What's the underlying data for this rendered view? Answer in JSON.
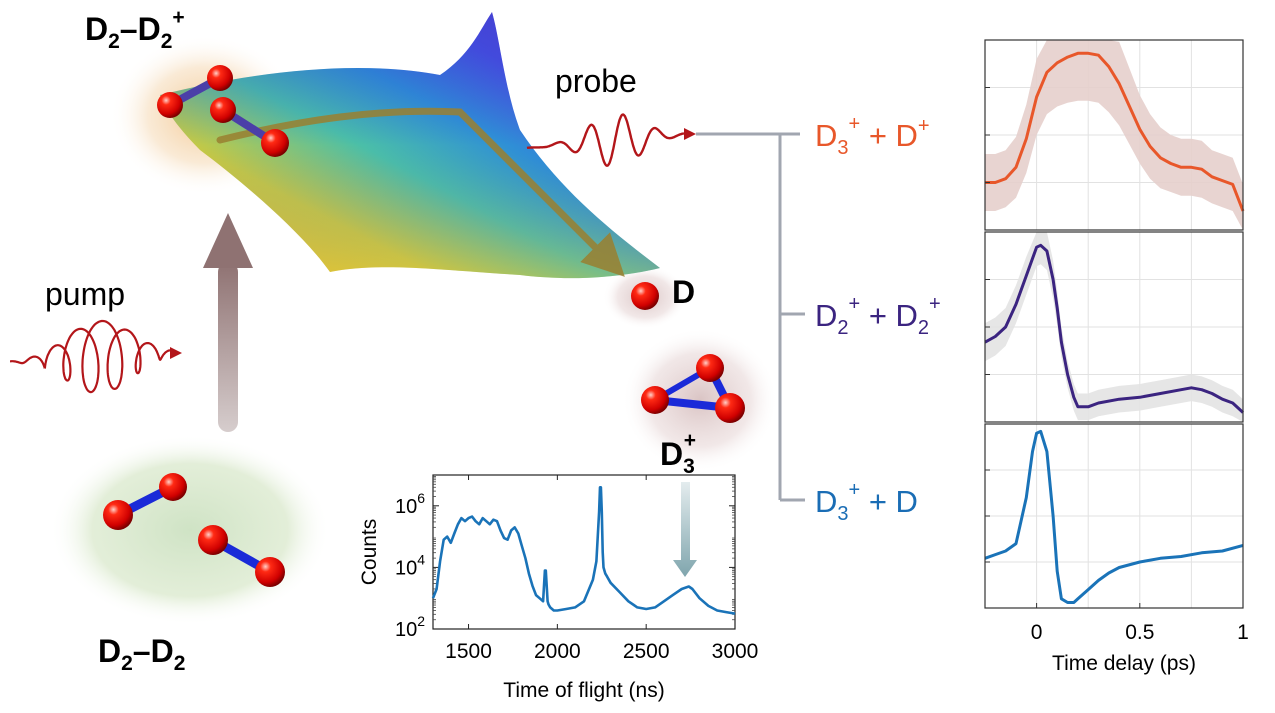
{
  "labels": {
    "dimer_cation": {
      "main": "D",
      "sub1": "2",
      "dash": "–D",
      "sub2": "2",
      "sup": "+"
    },
    "dimer_neutral": {
      "main": "D",
      "sub1": "2",
      "dash": "–D",
      "sub2": "2"
    },
    "probe": "probe",
    "pump": "pump",
    "d_atom": "D",
    "d3_ion": {
      "main": "D",
      "sub": "3",
      "sup": "+"
    }
  },
  "channels": [
    {
      "a": "D",
      "a_sub": "3",
      "a_sup": "+",
      "plus": " + ",
      "b": "D",
      "b_sub": "",
      "b_sup": "+",
      "color": "#e8572a"
    },
    {
      "a": "D",
      "a_sub": "2",
      "a_sup": "+",
      "plus": " + ",
      "b": "D",
      "b_sub": "2",
      "b_sup": "+",
      "color": "#3b2480"
    },
    {
      "a": "D",
      "a_sub": "3",
      "a_sup": "+",
      "plus": " + ",
      "b": "D",
      "b_sub": "",
      "b_sup": "",
      "color": "#1a6db5"
    }
  ],
  "tof_chart": {
    "type": "line",
    "xlabel": "Time of flight (ns)",
    "ylabel": "Counts",
    "xlim": [
      1300,
      3000
    ],
    "ylog_range": [
      2,
      7
    ],
    "xticks": [
      1500,
      2000,
      2500,
      3000
    ],
    "yticks": [
      {
        "base": "10",
        "exp": "2",
        "log": 2
      },
      {
        "base": "10",
        "exp": "4",
        "log": 4
      },
      {
        "base": "10",
        "exp": "6",
        "log": 6
      }
    ],
    "color": "#1a73b8",
    "series": {
      "x": [
        1300,
        1320,
        1340,
        1360,
        1380,
        1400,
        1420,
        1440,
        1460,
        1480,
        1500,
        1520,
        1540,
        1560,
        1580,
        1600,
        1620,
        1640,
        1660,
        1680,
        1700,
        1720,
        1740,
        1760,
        1780,
        1800,
        1820,
        1840,
        1860,
        1880,
        1900,
        1920,
        1930,
        1935,
        1945,
        1950,
        1960,
        1980,
        2000,
        2050,
        2100,
        2150,
        2200,
        2220,
        2235,
        2240,
        2245,
        2250,
        2255,
        2260,
        2270,
        2280,
        2300,
        2350,
        2400,
        2450,
        2500,
        2550,
        2600,
        2650,
        2700,
        2740,
        2760,
        2800,
        2850,
        2900,
        2950,
        3000
      ],
      "log_counts": [
        3.0,
        3.3,
        4.2,
        4.9,
        5.0,
        4.8,
        5.1,
        5.4,
        5.6,
        5.5,
        5.6,
        5.65,
        5.5,
        5.4,
        5.6,
        5.5,
        5.4,
        5.55,
        5.5,
        5.2,
        4.95,
        4.9,
        5.2,
        5.3,
        5.1,
        4.7,
        4.3,
        3.8,
        3.4,
        3.1,
        3.0,
        2.9,
        3.9,
        3.9,
        2.9,
        2.8,
        2.7,
        2.6,
        2.6,
        2.65,
        2.7,
        2.9,
        3.6,
        4.2,
        5.8,
        6.6,
        6.6,
        5.8,
        4.5,
        4.0,
        3.8,
        3.7,
        3.5,
        3.2,
        2.9,
        2.7,
        2.65,
        2.7,
        2.9,
        3.1,
        3.3,
        3.38,
        3.3,
        3.0,
        2.75,
        2.6,
        2.55,
        2.5
      ]
    }
  },
  "time_chart": {
    "type": "line",
    "xlabel": "Time delay (ps)",
    "xlim": [
      -0.25,
      1.0
    ],
    "xticks": [
      {
        "v": 0,
        "label": "0"
      },
      {
        "v": 0.5,
        "label": "0.5"
      },
      {
        "v": 1.0,
        "label": "1"
      }
    ],
    "series": [
      {
        "name": "D3+ + D+",
        "color": "#e8572a",
        "band": "#e6cfcc",
        "x": [
          -0.25,
          -0.2,
          -0.15,
          -0.1,
          -0.05,
          0,
          0.05,
          0.1,
          0.15,
          0.2,
          0.25,
          0.3,
          0.35,
          0.4,
          0.45,
          0.5,
          0.55,
          0.6,
          0.65,
          0.7,
          0.75,
          0.8,
          0.85,
          0.9,
          0.95,
          1.0
        ],
        "y": [
          0.25,
          0.25,
          0.27,
          0.33,
          0.48,
          0.7,
          0.83,
          0.88,
          0.91,
          0.93,
          0.93,
          0.92,
          0.86,
          0.77,
          0.65,
          0.53,
          0.44,
          0.38,
          0.35,
          0.33,
          0.33,
          0.32,
          0.28,
          0.26,
          0.24,
          0.1
        ],
        "err": [
          0.15,
          0.15,
          0.15,
          0.16,
          0.18,
          0.2,
          0.22,
          0.23,
          0.24,
          0.25,
          0.25,
          0.25,
          0.24,
          0.22,
          0.2,
          0.18,
          0.17,
          0.16,
          0.15,
          0.15,
          0.15,
          0.15,
          0.14,
          0.14,
          0.14,
          0.14
        ]
      },
      {
        "name": "D2+ + D2+",
        "color": "#3b2480",
        "band": "#e3e3e3",
        "x": [
          -0.25,
          -0.2,
          -0.15,
          -0.1,
          -0.05,
          0,
          0.02,
          0.05,
          0.08,
          0.1,
          0.12,
          0.15,
          0.18,
          0.2,
          0.25,
          0.3,
          0.4,
          0.5,
          0.6,
          0.7,
          0.75,
          0.8,
          0.85,
          0.9,
          0.95,
          1.0
        ],
        "y": [
          0.42,
          0.45,
          0.5,
          0.62,
          0.77,
          0.92,
          0.93,
          0.9,
          0.75,
          0.6,
          0.42,
          0.25,
          0.13,
          0.08,
          0.08,
          0.1,
          0.12,
          0.13,
          0.15,
          0.17,
          0.18,
          0.17,
          0.15,
          0.12,
          0.1,
          0.05
        ],
        "err": [
          0.1,
          0.1,
          0.1,
          0.1,
          0.1,
          0.1,
          0.1,
          0.1,
          0.1,
          0.09,
          0.08,
          0.07,
          0.07,
          0.07,
          0.07,
          0.07,
          0.07,
          0.07,
          0.07,
          0.07,
          0.07,
          0.07,
          0.07,
          0.07,
          0.07,
          0.07
        ]
      },
      {
        "name": "D3+ + D",
        "color": "#1a73b8",
        "band": "",
        "x": [
          -0.25,
          -0.2,
          -0.15,
          -0.1,
          -0.05,
          -0.02,
          0,
          0.02,
          0.05,
          0.08,
          0.1,
          0.12,
          0.15,
          0.18,
          0.2,
          0.25,
          0.3,
          0.35,
          0.4,
          0.5,
          0.6,
          0.7,
          0.8,
          0.9,
          1.0
        ],
        "y": [
          0.27,
          0.29,
          0.31,
          0.35,
          0.6,
          0.85,
          0.95,
          0.96,
          0.85,
          0.5,
          0.2,
          0.05,
          0.03,
          0.03,
          0.05,
          0.1,
          0.15,
          0.19,
          0.22,
          0.25,
          0.27,
          0.28,
          0.3,
          0.31,
          0.34
        ],
        "err": []
      }
    ]
  }
}
